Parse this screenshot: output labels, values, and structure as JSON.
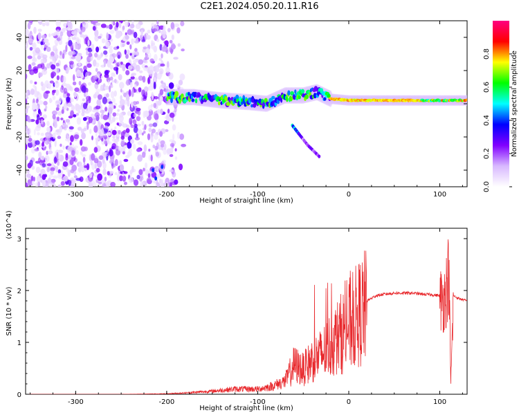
{
  "title": "C2E1.2024.050.20.11.R16",
  "chart_data": [
    {
      "type": "heatmap",
      "xlabel": "Height of straight line (km)",
      "ylabel": "Frequency (Hz)",
      "xlim": [
        -355,
        130
      ],
      "ylim": [
        -50,
        50
      ],
      "xticks": [
        -300,
        -200,
        -100,
        0,
        100
      ],
      "yticks": [
        -40,
        -20,
        0,
        20,
        40
      ],
      "colorbar": {
        "label": "Normalized spectral amplitude",
        "range": [
          0,
          1
        ],
        "ticks": [
          0.0,
          0.2,
          0.4,
          0.6,
          0.8
        ],
        "tick_labels": [
          "0.0",
          "0.2",
          "0.4",
          "0.6",
          "0.8"
        ],
        "colors": [
          "#ffffff",
          "#d8b8ff",
          "#8000ff",
          "#0000ff",
          "#00ffff",
          "#00ff00",
          "#ffff00",
          "#ff0000",
          "#ff0080"
        ]
      },
      "features": {
        "noise_region_x": [
          -355,
          -180
        ],
        "main_band": [
          {
            "x": -200,
            "y": 4
          },
          {
            "x": -170,
            "y": 4
          },
          {
            "x": -140,
            "y": 2
          },
          {
            "x": -110,
            "y": 1
          },
          {
            "x": -90,
            "y": 0
          },
          {
            "x": -70,
            "y": 5
          },
          {
            "x": -50,
            "y": 5
          },
          {
            "x": -35,
            "y": 7
          },
          {
            "x": -20,
            "y": 3
          },
          {
            "x": 0,
            "y": 2
          },
          {
            "x": 50,
            "y": 2
          },
          {
            "x": 100,
            "y": 2
          },
          {
            "x": 130,
            "y": 2
          }
        ],
        "branch": [
          {
            "x": -62,
            "y": -13
          },
          {
            "x": -55,
            "y": -18
          },
          {
            "x": -45,
            "y": -25
          },
          {
            "x": -32,
            "y": -32
          }
        ]
      }
    },
    {
      "type": "line",
      "xlabel": "Height of straight line (km)",
      "ylabel": "SNR (10 * v/v)",
      "y_multiplier": "(x10^4)",
      "xlim": [
        -355,
        130
      ],
      "ylim": [
        0,
        3.2
      ],
      "xticks": [
        -300,
        -200,
        -100,
        0,
        100
      ],
      "yticks": [
        0,
        1,
        2,
        3
      ],
      "color": "#e8282c",
      "x": [
        -355,
        -300,
        -250,
        -200,
        -175,
        -150,
        -125,
        -100,
        -85,
        -70,
        -60,
        -50,
        -40,
        -30,
        -20,
        -10,
        0,
        10,
        20,
        30,
        40,
        50,
        60,
        70,
        80,
        90,
        100,
        105,
        108,
        110,
        112,
        115,
        120,
        130
      ],
      "values": [
        0.0,
        0.0,
        0.0,
        0.01,
        0.03,
        0.06,
        0.1,
        0.1,
        0.15,
        0.25,
        0.6,
        0.5,
        0.7,
        0.8,
        1.0,
        1.2,
        1.4,
        1.6,
        1.8,
        1.9,
        1.93,
        1.95,
        1.95,
        1.95,
        1.93,
        1.92,
        1.9,
        1.95,
        2.2,
        2.5,
        0.2,
        1.9,
        1.85,
        1.8
      ]
    }
  ]
}
